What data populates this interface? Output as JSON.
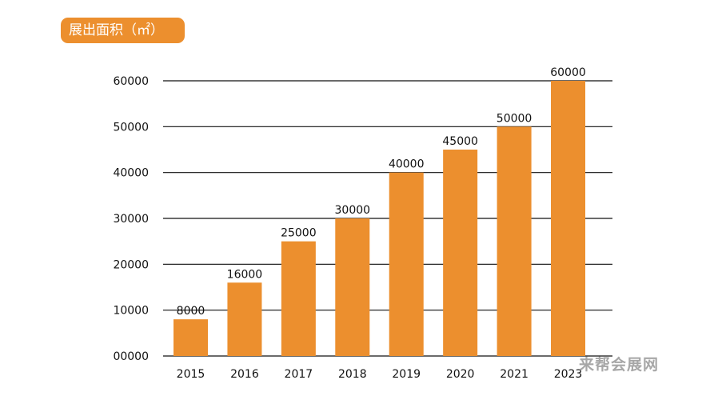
{
  "chart_data": {
    "type": "bar",
    "title": "展出面积（㎡）",
    "categories": [
      "2015",
      "2016",
      "2017",
      "2018",
      "2019",
      "2020",
      "2021",
      "2023"
    ],
    "values": [
      8000,
      16000,
      25000,
      30000,
      40000,
      45000,
      50000,
      60000
    ],
    "value_labels": [
      "8000",
      "16000",
      "25000",
      "30000",
      "40000",
      "45000",
      "50000",
      "60000"
    ],
    "y_ticks": [
      0,
      10000,
      20000,
      30000,
      40000,
      50000,
      60000
    ],
    "y_tick_labels": [
      "00000",
      "10000",
      "20000",
      "30000",
      "40000",
      "50000",
      "60000"
    ],
    "ylim": [
      0,
      60000
    ],
    "xlabel": "",
    "ylabel": "",
    "grid": true,
    "legend": "none",
    "bar_color": "#ec8f2e",
    "title_badge_color": "#ec8f2e"
  },
  "watermark": "来帮会展网"
}
